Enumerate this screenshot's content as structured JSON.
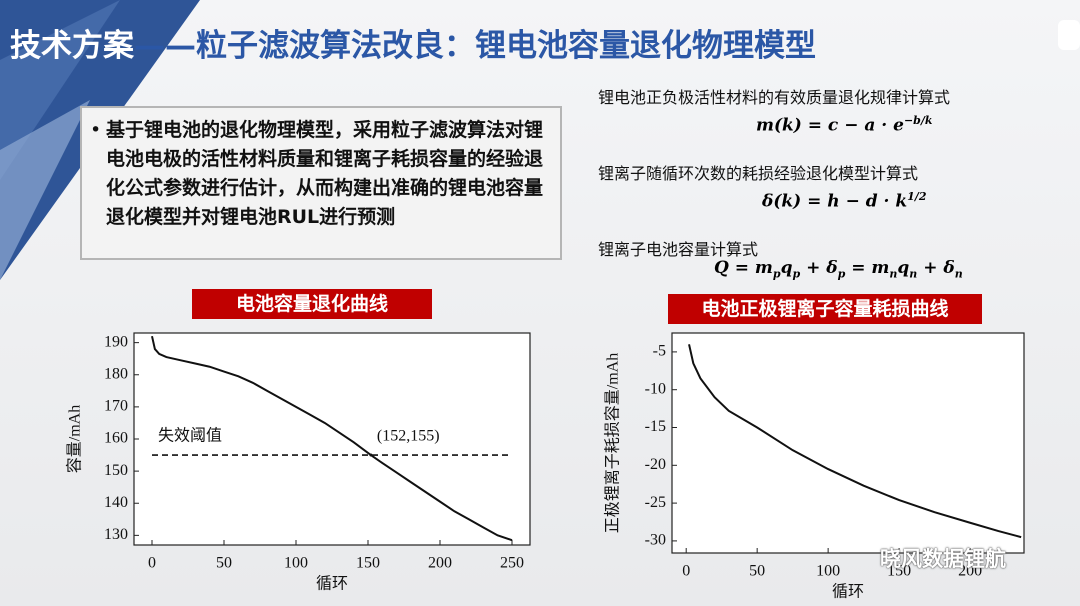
{
  "title": [
    "技术方案",
    "——粒子滤波算法改良：锂电池容量退化物理模型"
  ],
  "bullet": "基于锂电池的退化物理模型，采用粒子滤波算法对锂电池电极的活性材料质量和锂离子耗损容量的经验退化公式参数进行估计，从而构建出准确的锂电池容量退化模型并对锂电池RUL进行预测",
  "formulas": [
    {
      "caption": "锂电池正负极活性材料的有效质量退化规律计算式",
      "parts": [
        {
          "t": "m(k) = c − a · e"
        },
        {
          "sup": "−b/k"
        }
      ]
    },
    {
      "caption": "锂离子随循环次数的耗损经验退化模型计算式",
      "parts": [
        {
          "t": "δ(k) = h − d · k"
        },
        {
          "sup": "1/2"
        }
      ]
    },
    {
      "caption": "锂离子电池容量计算式",
      "parts": [
        {
          "t": "Q = m"
        },
        {
          "sub": "p"
        },
        {
          "t": "q"
        },
        {
          "sub": "p"
        },
        {
          "t": " + δ"
        },
        {
          "sub": "p"
        },
        {
          "t": " = m"
        },
        {
          "sub": "n"
        },
        {
          "t": "q"
        },
        {
          "sub": "n"
        },
        {
          "t": " + δ"
        },
        {
          "sub": "n"
        }
      ]
    }
  ],
  "watermark": "晓风数据锂航",
  "chart_data": [
    {
      "type": "line",
      "title": "电池容量退化曲线",
      "xlabel": "循环",
      "ylabel": "容量/mAh",
      "color": "#111111",
      "x": [
        0,
        2,
        5,
        10,
        20,
        30,
        40,
        50,
        60,
        70,
        80,
        90,
        100,
        110,
        120,
        130,
        140,
        152,
        160,
        170,
        180,
        190,
        200,
        210,
        220,
        230,
        240,
        250
      ],
      "values": [
        192,
        188,
        186.5,
        185.5,
        184.5,
        183.5,
        182.5,
        181,
        179.5,
        177.5,
        175,
        172.5,
        170,
        167.5,
        165,
        162,
        159,
        155,
        152.5,
        149.5,
        146.5,
        143.5,
        140.5,
        137.5,
        135,
        132.5,
        130,
        128.5
      ],
      "xlim": [
        -12.5,
        262.5
      ],
      "ylim": [
        127,
        193
      ],
      "xticks": [
        0,
        50,
        100,
        150,
        200,
        250
      ],
      "yticks": [
        130,
        140,
        150,
        160,
        170,
        180,
        190
      ],
      "threshold": {
        "value": 155,
        "label": "失效阈值"
      },
      "annotation": {
        "x": 152,
        "y": 155,
        "label": "(152,155)"
      }
    },
    {
      "type": "line",
      "title": "电池正极锂离子容量耗损曲线",
      "xlabel": "循环",
      "ylabel": "正极锂离子耗损容量/mAh",
      "color": "#111111",
      "x": [
        2,
        5,
        10,
        20,
        30,
        50,
        75,
        100,
        125,
        150,
        175,
        200,
        220,
        236
      ],
      "values": [
        -4,
        -6.5,
        -8.5,
        -11,
        -12.8,
        -15,
        -18,
        -20.5,
        -22.7,
        -24.6,
        -26.2,
        -27.6,
        -28.7,
        -29.5
      ],
      "xlim": [
        -10,
        238
      ],
      "ylim": [
        -31.6,
        -2.5
      ],
      "xticks": [
        0,
        50,
        100,
        150,
        200
      ],
      "yticks": [
        -5,
        -10,
        -15,
        -20,
        -25,
        -30
      ]
    }
  ]
}
